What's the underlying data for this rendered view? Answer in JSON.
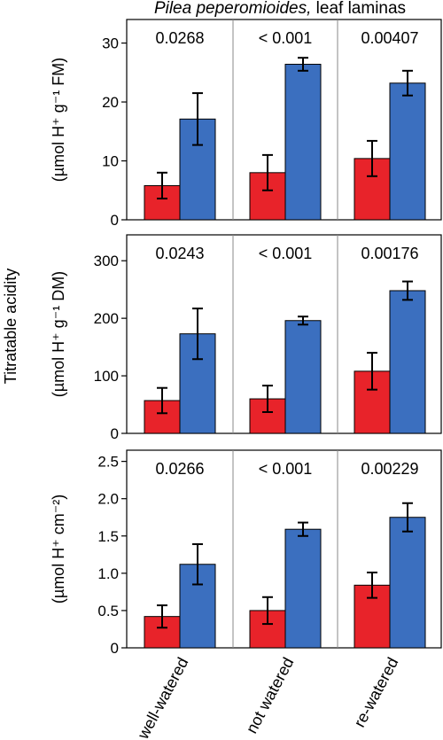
{
  "figure": {
    "title_species": "Pilea peperomioides,",
    "title_rest": " leaf laminas",
    "shared_ylabel": "Titratable acidity",
    "categories": [
      "well-watered",
      "not watered",
      "re-watered"
    ]
  },
  "colors": {
    "series_a": "#e8232a",
    "series_b": "#3b6fbf"
  },
  "chart_data": [
    {
      "type": "bar",
      "ylabel": "(µmol H⁺ g⁻¹ FM)",
      "ylim": [
        0,
        34
      ],
      "yticks": [
        "0",
        "10",
        "20",
        "30"
      ],
      "ytick_values": [
        0,
        10,
        20,
        30
      ],
      "categories": [
        "well-watered",
        "not watered",
        "re-watered"
      ],
      "series": [
        {
          "values": [
            5.8,
            8.0,
            10.4
          ],
          "errors": [
            2.2,
            3.0,
            3.0
          ]
        },
        {
          "values": [
            17.1,
            26.4,
            23.2
          ],
          "errors": [
            4.4,
            1.1,
            2.1
          ]
        }
      ],
      "annotations": [
        "0.0268",
        "< 0.001",
        "0.00407"
      ]
    },
    {
      "type": "bar",
      "ylabel": "(µmol H⁺ g⁻¹ DM)",
      "ylim": [
        0,
        345
      ],
      "yticks": [
        "0",
        "100",
        "200",
        "300"
      ],
      "ytick_values": [
        0,
        100,
        200,
        300
      ],
      "categories": [
        "well-watered",
        "not watered",
        "re-watered"
      ],
      "series": [
        {
          "values": [
            57,
            60,
            108
          ],
          "errors": [
            22,
            23,
            32
          ]
        },
        {
          "values": [
            173,
            196,
            248
          ],
          "errors": [
            44,
            7,
            16
          ]
        }
      ],
      "annotations": [
        "0.0243",
        "< 0.001",
        "0.00176"
      ]
    },
    {
      "type": "bar",
      "ylabel": "(µmol H⁺ cm⁻²)",
      "ylim": [
        0,
        2.65
      ],
      "yticks": [
        "0",
        "0.5",
        "1.0",
        "1.5",
        "2.0",
        "2.5"
      ],
      "ytick_values": [
        0,
        0.5,
        1.0,
        1.5,
        2.0,
        2.5
      ],
      "categories": [
        "well-watered",
        "not watered",
        "re-watered"
      ],
      "series": [
        {
          "values": [
            0.42,
            0.5,
            0.84
          ],
          "errors": [
            0.15,
            0.18,
            0.17
          ]
        },
        {
          "values": [
            1.12,
            1.59,
            1.75
          ],
          "errors": [
            0.27,
            0.09,
            0.19
          ]
        }
      ],
      "annotations": [
        "0.0266",
        "< 0.001",
        "0.00229"
      ]
    }
  ]
}
